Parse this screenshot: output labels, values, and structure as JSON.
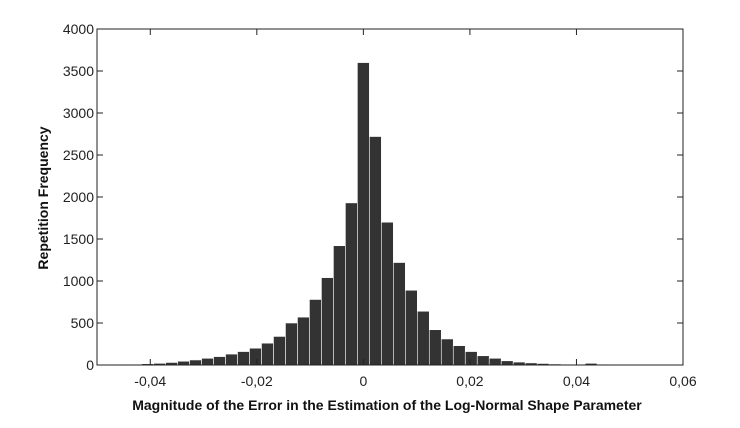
{
  "chart_data": {
    "type": "bar",
    "title": "",
    "xlabel": "Magnitude of the Error in the Estimation of the Log-Normal Shape Parameter",
    "ylabel": "Repetition Frequency",
    "xlim": [
      -0.05,
      0.06
    ],
    "ylim": [
      0,
      4000
    ],
    "grid": false,
    "bar_color": "#333333",
    "bin_width": 0.00225,
    "bin_centers": [
      -0.04725,
      -0.045,
      -0.04275,
      -0.0405,
      -0.03825,
      -0.036,
      -0.03375,
      -0.0315,
      -0.02925,
      -0.027,
      -0.02475,
      -0.0225,
      -0.02025,
      -0.018,
      -0.01575,
      -0.0135,
      -0.01125,
      -0.009,
      -0.00675,
      -0.0045,
      -0.00225,
      0.0,
      0.00225,
      0.0045,
      0.00675,
      0.009,
      0.01125,
      0.0135,
      0.01575,
      0.018,
      0.02025,
      0.0225,
      0.02475,
      0.027,
      0.02925,
      0.0315,
      0.03375,
      0.036,
      0.03825,
      0.0405,
      0.04275,
      0.045,
      0.04725,
      0.0495,
      0.05175
    ],
    "values": [
      5,
      8,
      10,
      15,
      20,
      30,
      45,
      60,
      80,
      100,
      130,
      160,
      200,
      260,
      340,
      500,
      570,
      780,
      1040,
      1420,
      1930,
      3600,
      2720,
      1700,
      1220,
      890,
      640,
      420,
      310,
      230,
      160,
      110,
      80,
      50,
      35,
      25,
      18,
      12,
      10,
      8,
      20,
      10,
      5,
      3,
      2
    ],
    "x_ticks": [
      -0.04,
      -0.02,
      0,
      0.02,
      0.04,
      0.06
    ],
    "x_tick_labels": [
      "-0,04",
      "-0,02",
      "0",
      "0,02",
      "0,04",
      "0,06"
    ],
    "y_ticks": [
      0,
      500,
      1000,
      1500,
      2000,
      2500,
      3000,
      3500,
      4000
    ],
    "y_tick_labels": [
      "0",
      "500",
      "1000",
      "1500",
      "2000",
      "2500",
      "3000",
      "3500",
      "4000"
    ]
  }
}
